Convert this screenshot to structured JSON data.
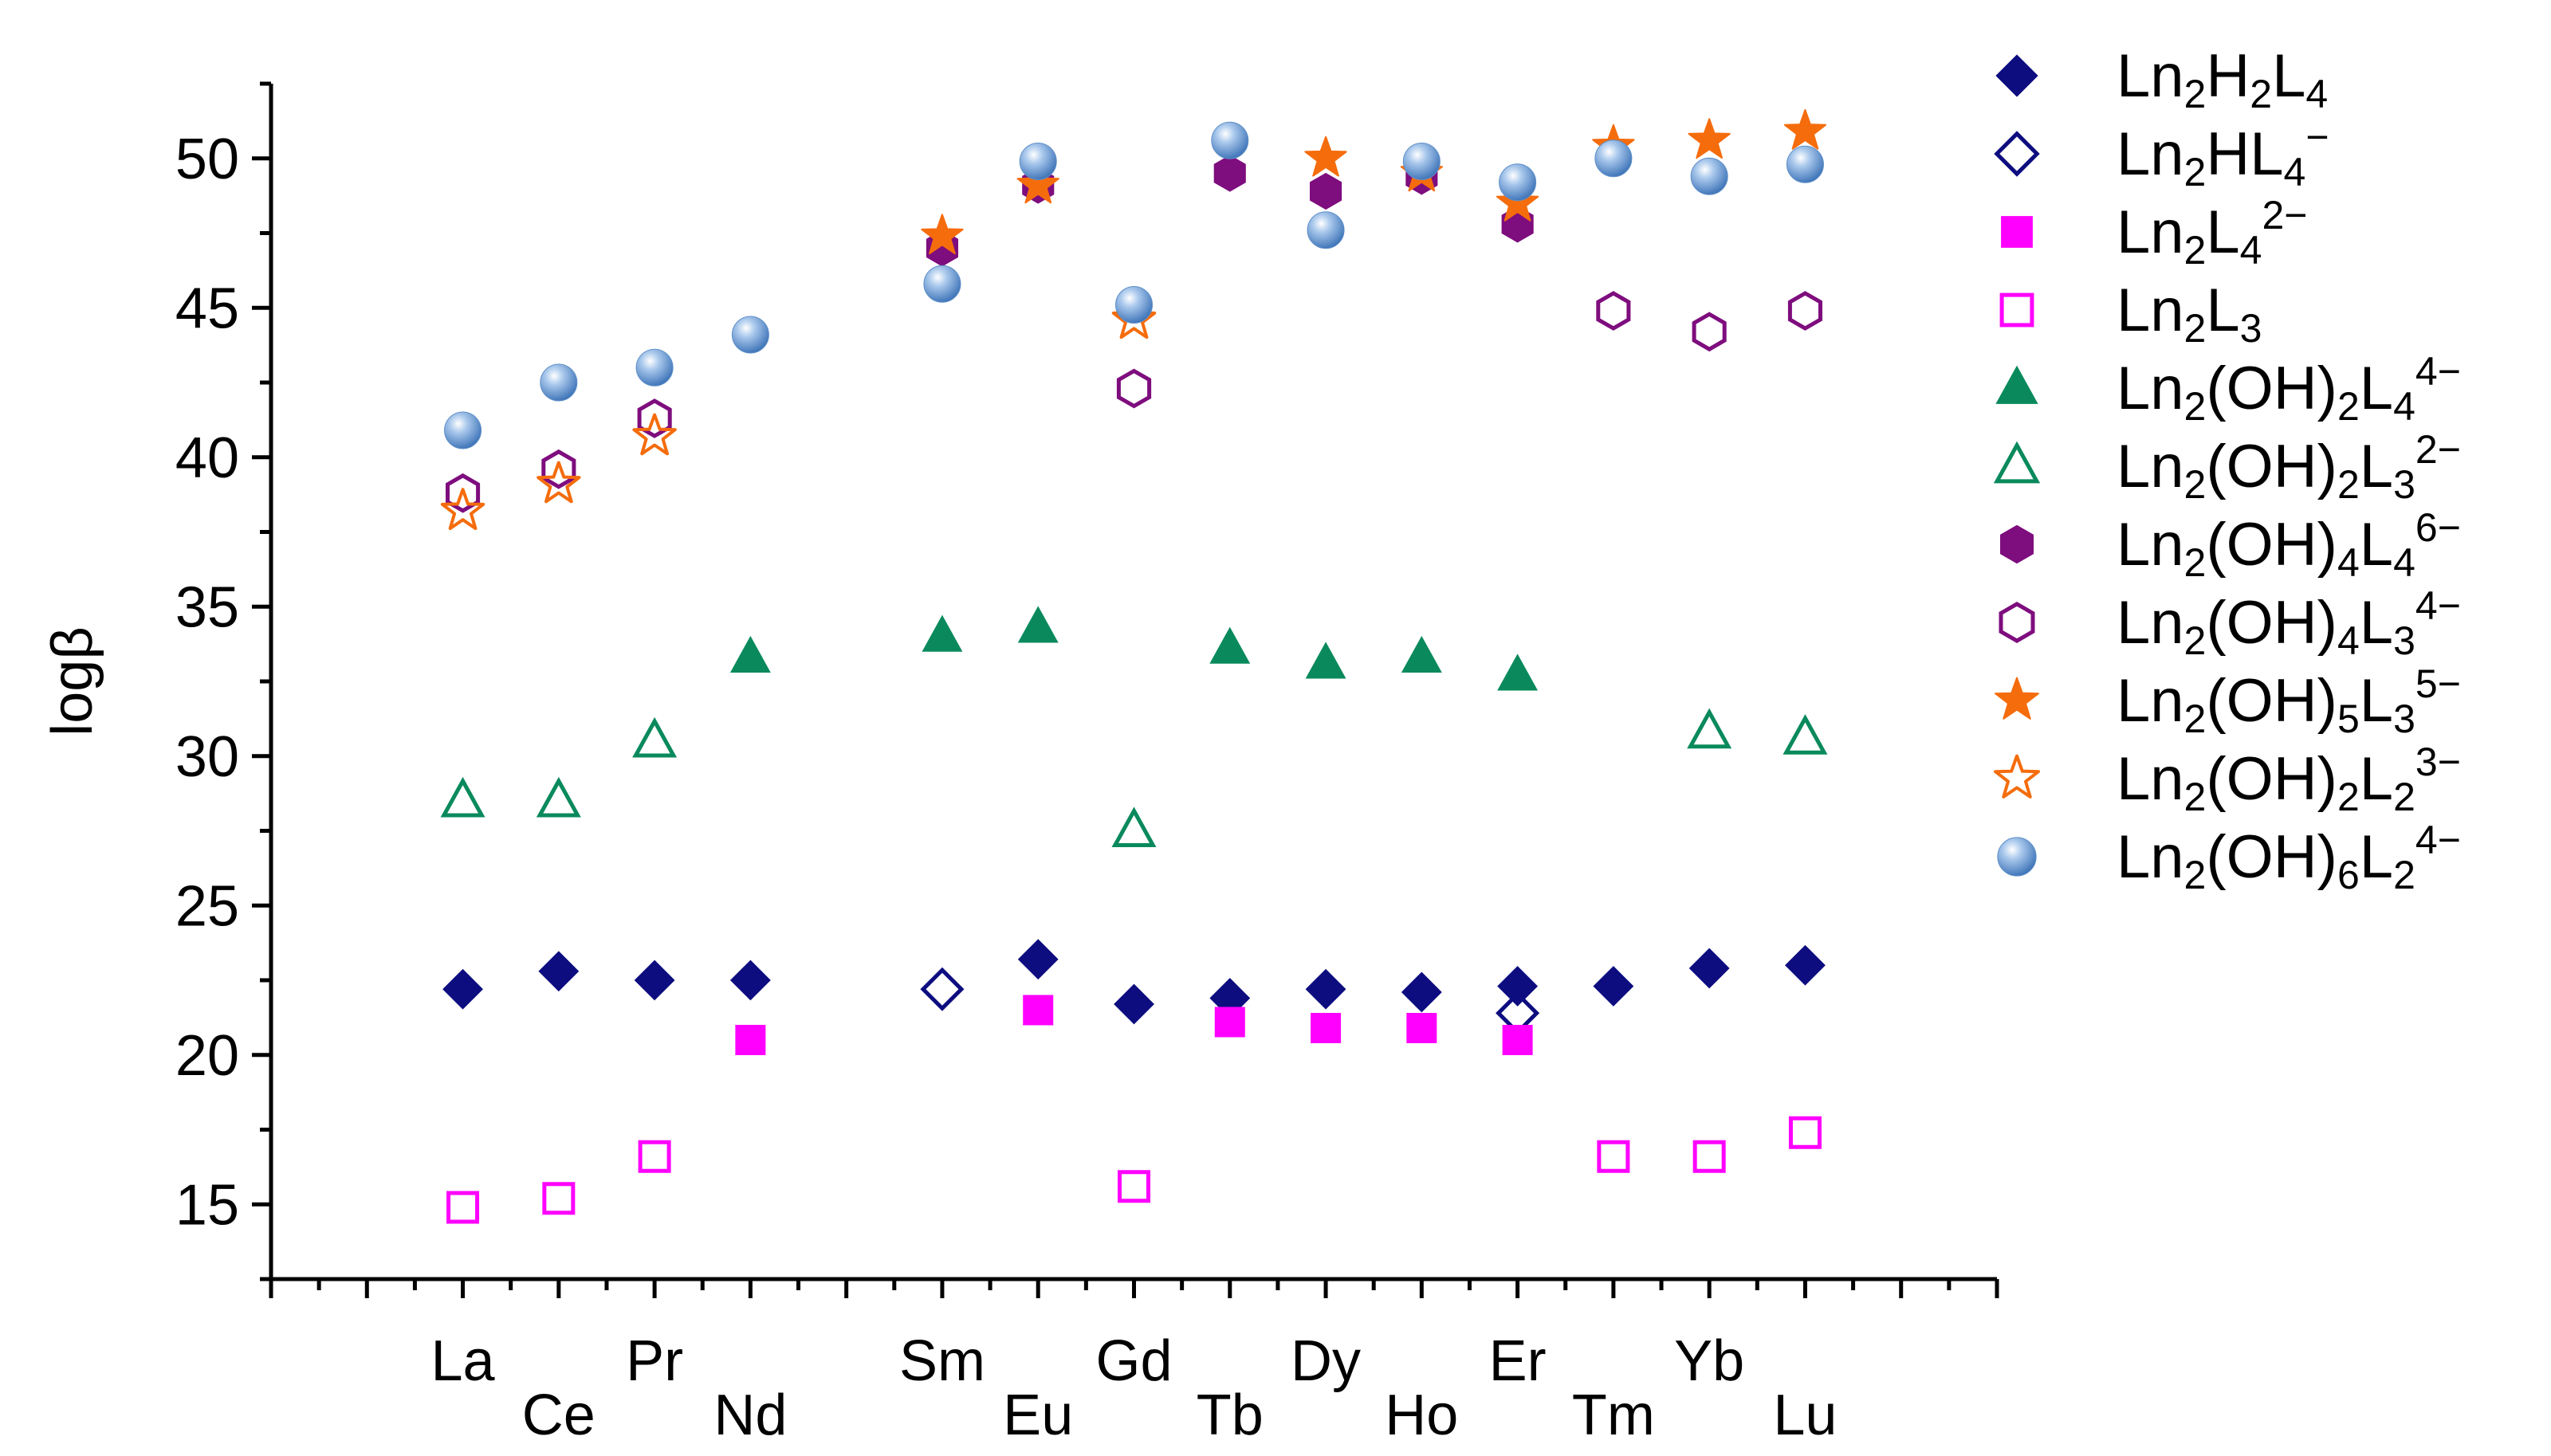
{
  "chart_data": {
    "type": "scatter",
    "title": "",
    "xlabel": "",
    "ylabel": "logβ",
    "ylim": [
      12.5,
      52.5
    ],
    "yticks": [
      15,
      20,
      25,
      30,
      35,
      40,
      45,
      50
    ],
    "categories": [
      "La",
      "Ce",
      "Pr",
      "Nd",
      "Sm",
      "Eu",
      "Gd",
      "Tb",
      "Dy",
      "Ho",
      "Er",
      "Tm",
      "Yb",
      "Lu"
    ],
    "category_positions": [
      2,
      3,
      4,
      5,
      7,
      8,
      9,
      10,
      11,
      12,
      13,
      14,
      15,
      16
    ],
    "x_range": [
      0,
      18
    ],
    "series": [
      {
        "name": "Ln2H2L4",
        "marker": "diamond",
        "filled": true,
        "color": "#0d0d80",
        "values": [
          22.2,
          22.8,
          22.5,
          22.5,
          null,
          23.2,
          21.7,
          21.9,
          22.2,
          22.1,
          22.3,
          22.3,
          22.9,
          23.0
        ]
      },
      {
        "name": "Ln2HL4−",
        "marker": "diamond",
        "filled": false,
        "color": "#0d0d80",
        "values": [
          null,
          null,
          null,
          null,
          22.2,
          null,
          null,
          null,
          null,
          null,
          21.4,
          null,
          null,
          null
        ]
      },
      {
        "name": "Ln2L42−",
        "marker": "square",
        "filled": true,
        "color": "#ff00ff",
        "values": [
          null,
          null,
          null,
          20.5,
          null,
          21.5,
          null,
          21.1,
          20.9,
          20.9,
          20.5,
          null,
          null,
          null
        ]
      },
      {
        "name": "Ln2L3",
        "marker": "square",
        "filled": false,
        "color": "#ff00ff",
        "values": [
          14.9,
          15.2,
          16.6,
          null,
          null,
          null,
          15.6,
          null,
          null,
          null,
          null,
          16.6,
          16.6,
          17.4
        ]
      },
      {
        "name": "Ln2(OH)2L44−",
        "marker": "triangle",
        "filled": true,
        "color": "#0a8a5c",
        "values": [
          null,
          null,
          null,
          33.3,
          34.0,
          34.3,
          null,
          33.6,
          33.1,
          33.3,
          32.7,
          null,
          null,
          null
        ]
      },
      {
        "name": "Ln2(OH)2L32−",
        "marker": "triangle",
        "filled": false,
        "color": "#0a8a5c",
        "values": [
          28.5,
          28.5,
          30.5,
          null,
          null,
          null,
          27.5,
          null,
          null,
          null,
          null,
          null,
          30.8,
          30.6
        ]
      },
      {
        "name": "Ln2(OH)4L46−",
        "marker": "hexagon",
        "filled": true,
        "color": "#7e0d7e",
        "values": [
          null,
          null,
          null,
          null,
          47.0,
          49.1,
          null,
          49.5,
          48.9,
          49.4,
          47.8,
          null,
          null,
          null
        ]
      },
      {
        "name": "Ln2(OH)4L34−",
        "marker": "hexagon",
        "filled": false,
        "color": "#7e0d7e",
        "values": [
          38.8,
          39.6,
          41.3,
          null,
          null,
          null,
          42.3,
          null,
          null,
          null,
          null,
          44.9,
          44.2,
          44.9
        ]
      },
      {
        "name": "Ln2(OH)5L35−",
        "marker": "star",
        "filled": true,
        "color": "#f56c0c",
        "values": [
          null,
          null,
          null,
          null,
          47.4,
          49.1,
          null,
          null,
          50.0,
          49.5,
          48.5,
          50.4,
          50.6,
          50.9
        ]
      },
      {
        "name": "Ln2(OH)2L23−",
        "marker": "star",
        "filled": false,
        "color": "#f56c0c",
        "values": [
          38.2,
          39.1,
          40.7,
          null,
          null,
          null,
          44.6,
          null,
          null,
          null,
          null,
          null,
          null,
          null
        ]
      },
      {
        "name": "Ln2(OH)6L24−",
        "marker": "sphere",
        "filled": true,
        "color": "#6f9fd4",
        "values": [
          40.9,
          42.5,
          43.0,
          44.1,
          45.8,
          49.9,
          45.1,
          50.6,
          47.6,
          49.9,
          49.2,
          50.0,
          49.4,
          49.8
        ]
      }
    ],
    "legend": {
      "position": "right",
      "entries": [
        {
          "base": "Ln",
          "parts": [
            [
              "sub",
              "2"
            ],
            [
              "txt",
              "H"
            ],
            [
              "sub",
              "2"
            ],
            [
              "txt",
              "L"
            ],
            [
              "sub",
              "4"
            ]
          ]
        },
        {
          "base": "Ln",
          "parts": [
            [
              "sub",
              "2"
            ],
            [
              "txt",
              "HL"
            ],
            [
              "sub",
              "4"
            ],
            [
              "sup",
              "−"
            ]
          ]
        },
        {
          "base": "Ln",
          "parts": [
            [
              "sub",
              "2"
            ],
            [
              "txt",
              "L"
            ],
            [
              "sub",
              "4"
            ],
            [
              "sup",
              "2−"
            ]
          ]
        },
        {
          "base": "Ln",
          "parts": [
            [
              "sub",
              "2"
            ],
            [
              "txt",
              "L"
            ],
            [
              "sub",
              "3"
            ]
          ]
        },
        {
          "base": "Ln",
          "parts": [
            [
              "sub",
              "2"
            ],
            [
              "txt",
              "(OH)"
            ],
            [
              "sub",
              "2"
            ],
            [
              "txt",
              "L"
            ],
            [
              "sub",
              "4"
            ],
            [
              "sup",
              "4−"
            ]
          ]
        },
        {
          "base": "Ln",
          "parts": [
            [
              "sub",
              "2"
            ],
            [
              "txt",
              "(OH)"
            ],
            [
              "sub",
              "2"
            ],
            [
              "txt",
              "L"
            ],
            [
              "sub",
              "3"
            ],
            [
              "sup",
              "2−"
            ]
          ]
        },
        {
          "base": "Ln",
          "parts": [
            [
              "sub",
              "2"
            ],
            [
              "txt",
              "(OH)"
            ],
            [
              "sub",
              "4"
            ],
            [
              "txt",
              "L"
            ],
            [
              "sub",
              "4"
            ],
            [
              "sup",
              "6−"
            ]
          ]
        },
        {
          "base": "Ln",
          "parts": [
            [
              "sub",
              "2"
            ],
            [
              "txt",
              "(OH)"
            ],
            [
              "sub",
              "4"
            ],
            [
              "txt",
              "L"
            ],
            [
              "sub",
              "3"
            ],
            [
              "sup",
              "4−"
            ]
          ]
        },
        {
          "base": "Ln",
          "parts": [
            [
              "sub",
              "2"
            ],
            [
              "txt",
              "(OH)"
            ],
            [
              "sub",
              "5"
            ],
            [
              "txt",
              "L"
            ],
            [
              "sub",
              "3"
            ],
            [
              "sup",
              "5−"
            ]
          ]
        },
        {
          "base": "Ln",
          "parts": [
            [
              "sub",
              "2"
            ],
            [
              "txt",
              "(OH)"
            ],
            [
              "sub",
              "2"
            ],
            [
              "txt",
              "L"
            ],
            [
              "sub",
              "2"
            ],
            [
              "sup",
              "3−"
            ]
          ]
        },
        {
          "base": "Ln",
          "parts": [
            [
              "sub",
              "2"
            ],
            [
              "txt",
              "(OH)"
            ],
            [
              "sub",
              "6"
            ],
            [
              "txt",
              "L"
            ],
            [
              "sub",
              "2"
            ],
            [
              "sup",
              "4−"
            ]
          ]
        }
      ]
    }
  }
}
